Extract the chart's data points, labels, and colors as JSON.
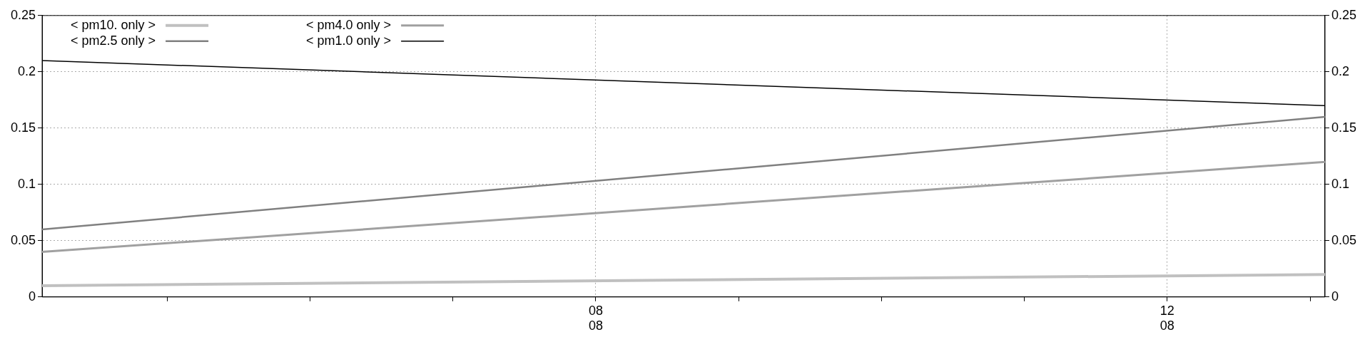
{
  "chart_data": {
    "type": "line",
    "x": [
      "--08-04T03:00",
      "--08-13T02:30"
    ],
    "series": [
      {
        "name": "< pm10. only >",
        "color": "#c0c0c0",
        "values": [
          0.01,
          0.02
        ]
      },
      {
        "name": "< pm4.0 only >",
        "color": "#a0a0a0",
        "values": [
          0.04,
          0.12
        ]
      },
      {
        "name": "< pm2.5 only >",
        "color": "#808080",
        "values": [
          0.06,
          0.16
        ]
      },
      {
        "name": "< pm1.0 only >",
        "color": "#000000",
        "values": [
          0.21,
          0.17
        ]
      }
    ],
    "xlim": [
      "--08-04T03:00",
      "--08-13T02:30"
    ],
    "xticks": [
      {
        "value": "--08-05",
        "label": null
      },
      {
        "value": "--08-06",
        "label": null
      },
      {
        "value": "--08-07",
        "label": null
      },
      {
        "value": "--08-08",
        "label": "08\n08"
      },
      {
        "value": "--08-09",
        "label": null
      },
      {
        "value": "--08-10",
        "label": null
      },
      {
        "value": "--08-11",
        "label": null
      },
      {
        "value": "--08-12",
        "label": "12\n08"
      },
      {
        "value": "--08-13",
        "label": null
      }
    ],
    "ylim": [
      0,
      0.25
    ],
    "yticks": [
      0,
      0.05,
      0.1,
      0.15,
      0.2,
      0.25
    ],
    "y2lim": [
      0,
      0.25
    ],
    "y2ticks": [
      0,
      0.05,
      0.1,
      0.15,
      0.2,
      0.25
    ],
    "grid": true,
    "legend": "top left",
    "marker": "none",
    "line_style": "solid"
  }
}
